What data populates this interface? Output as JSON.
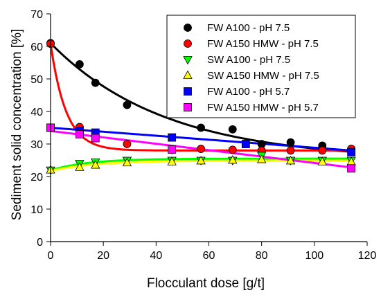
{
  "chart_data": {
    "type": "scatter",
    "title": "",
    "xlabel": "Flocculant dose [g/t]",
    "ylabel": "Sediment solid concentration [%]",
    "xlim": [
      0,
      120
    ],
    "ylim": [
      0,
      70
    ],
    "xticks": [
      0,
      20,
      40,
      60,
      80,
      100,
      120
    ],
    "yticks": [
      0,
      10,
      20,
      30,
      40,
      50,
      60,
      70
    ],
    "grid": false,
    "legend_position": "top-right",
    "series": [
      {
        "name": "FW A100 - pH 7.5",
        "marker": "circle",
        "color": "#000000",
        "x": [
          0,
          11,
          17,
          29,
          57,
          69,
          80,
          91,
          103,
          114
        ],
        "y": [
          61,
          54.5,
          48.8,
          42,
          35,
          34.5,
          30,
          30.5,
          29.5,
          28.5
        ],
        "fit": {
          "model": "exp",
          "a": 36,
          "b": 25,
          "k": 0.023
        }
      },
      {
        "name": "FW A150 HMW - pH 7.5",
        "marker": "circle",
        "color": "#ff0000",
        "x": [
          0,
          11,
          17,
          29,
          46,
          57,
          69,
          80,
          91,
          103,
          114
        ],
        "y": [
          60.8,
          35.2,
          32.5,
          30,
          28.2,
          28.5,
          28.2,
          28,
          28,
          28,
          28.5
        ],
        "fit": {
          "model": "exp",
          "a": 32.8,
          "b": 28,
          "k": 0.17
        }
      },
      {
        "name": "SW A100 - pH 7.5",
        "marker": "triangle-down",
        "color": "#00ff00",
        "x": [
          0,
          11,
          17,
          29,
          46,
          57,
          69,
          80,
          91,
          103,
          114
        ],
        "y": [
          22,
          24,
          24.5,
          25,
          25,
          25,
          25,
          26.5,
          25,
          25,
          25
        ],
        "fit": {
          "model": "exp",
          "a": -3.6,
          "b": 25.5,
          "k": 0.07
        }
      },
      {
        "name": "SW A150 HMW - pH 7.5",
        "marker": "triangle-up",
        "color": "#ffff00",
        "x": [
          0,
          11,
          17,
          29,
          46,
          57,
          69,
          80,
          91,
          103,
          114
        ],
        "y": [
          22,
          22.8,
          23.5,
          24.2,
          24.5,
          24.8,
          25,
          25.2,
          24.8,
          24.5,
          24.5
        ],
        "fit": {
          "model": "exp",
          "a": -3.2,
          "b": 24.9,
          "k": 0.06
        }
      },
      {
        "name": "FW A100 - pH 5.7",
        "marker": "square",
        "color": "#0000ff",
        "x": [
          0,
          11,
          17,
          46,
          74,
          114
        ],
        "y": [
          35,
          34,
          33.5,
          32,
          30,
          27.5
        ],
        "fit": {
          "model": "linear",
          "x0": 0,
          "y0": 35,
          "x1": 114,
          "y1": 28
        }
      },
      {
        "name": "FW A150 HMW - pH 5.7",
        "marker": "square",
        "color": "#ff00ff",
        "x": [
          0,
          11,
          17,
          46,
          114
        ],
        "y": [
          35,
          33,
          31.8,
          28.3,
          22.5
        ],
        "fit": {
          "model": "linear",
          "x0": 0,
          "y0": 34,
          "x1": 114,
          "y1": 22.8
        }
      }
    ]
  }
}
